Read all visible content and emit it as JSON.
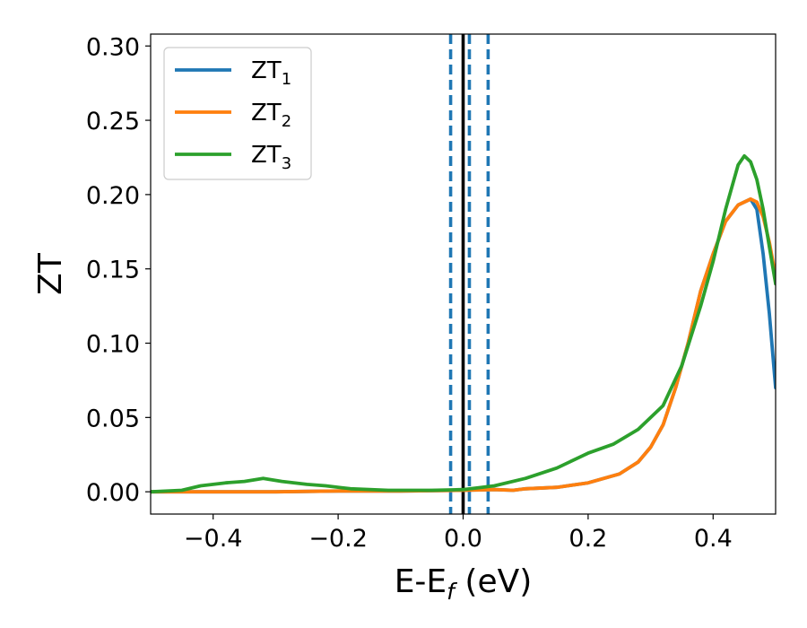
{
  "chart_data": {
    "type": "line",
    "xlabel_main": "E-E",
    "xlabel_sub": "f",
    "xlabel_unit": " (eV)",
    "ylabel": "ZT",
    "xlim": [
      -0.5,
      0.5
    ],
    "ylim": [
      -0.015,
      0.308
    ],
    "xticks": [
      -0.4,
      -0.2,
      0.0,
      0.2,
      0.4
    ],
    "xtick_labels": [
      "−0.4",
      "−0.2",
      "0.0",
      "0.2",
      "0.4"
    ],
    "yticks": [
      0.0,
      0.05,
      0.1,
      0.15,
      0.2,
      0.25,
      0.3
    ],
    "ytick_labels": [
      "0.00",
      "0.05",
      "0.10",
      "0.15",
      "0.20",
      "0.25",
      "0.30"
    ],
    "grid": false,
    "legend_position": "top-left",
    "vlines": [
      {
        "x": 0.0,
        "style": "solid",
        "color": "#000000"
      },
      {
        "x": -0.02,
        "style": "dashed",
        "color": "#1f77b4"
      },
      {
        "x": 0.01,
        "style": "dashed",
        "color": "#1f77b4"
      },
      {
        "x": 0.04,
        "style": "dashed",
        "color": "#1f77b4"
      }
    ],
    "series": [
      {
        "name_main": "ZT",
        "name_sub": "1",
        "color": "#1f77b4",
        "points": [
          [
            -0.5,
            0.0
          ],
          [
            -0.4,
            0.0
          ],
          [
            -0.3,
            0.0
          ],
          [
            -0.2,
            0.0005
          ],
          [
            -0.1,
            0.0005
          ],
          [
            0.0,
            0.001
          ],
          [
            0.05,
            0.0015
          ],
          [
            0.08,
            0.001
          ],
          [
            0.1,
            0.002
          ],
          [
            0.15,
            0.003
          ],
          [
            0.2,
            0.006
          ],
          [
            0.25,
            0.012
          ],
          [
            0.28,
            0.02
          ],
          [
            0.3,
            0.03
          ],
          [
            0.32,
            0.045
          ],
          [
            0.34,
            0.07
          ],
          [
            0.36,
            0.1
          ],
          [
            0.38,
            0.135
          ],
          [
            0.4,
            0.16
          ],
          [
            0.42,
            0.182
          ],
          [
            0.44,
            0.193
          ],
          [
            0.46,
            0.197
          ],
          [
            0.47,
            0.19
          ],
          [
            0.48,
            0.16
          ],
          [
            0.49,
            0.12
          ],
          [
            0.5,
            0.07
          ]
        ]
      },
      {
        "name_main": "ZT",
        "name_sub": "2",
        "color": "#ff7f0e",
        "points": [
          [
            -0.5,
            0.0
          ],
          [
            -0.4,
            0.0
          ],
          [
            -0.3,
            0.0
          ],
          [
            -0.2,
            0.0005
          ],
          [
            -0.1,
            0.0005
          ],
          [
            0.0,
            0.001
          ],
          [
            0.05,
            0.0015
          ],
          [
            0.08,
            0.001
          ],
          [
            0.1,
            0.002
          ],
          [
            0.15,
            0.003
          ],
          [
            0.2,
            0.006
          ],
          [
            0.25,
            0.012
          ],
          [
            0.28,
            0.02
          ],
          [
            0.3,
            0.03
          ],
          [
            0.32,
            0.045
          ],
          [
            0.34,
            0.07
          ],
          [
            0.36,
            0.1
          ],
          [
            0.38,
            0.135
          ],
          [
            0.4,
            0.16
          ],
          [
            0.42,
            0.182
          ],
          [
            0.44,
            0.193
          ],
          [
            0.46,
            0.197
          ],
          [
            0.47,
            0.195
          ],
          [
            0.48,
            0.185
          ],
          [
            0.49,
            0.168
          ],
          [
            0.5,
            0.145
          ]
        ]
      },
      {
        "name_main": "ZT",
        "name_sub": "3",
        "color": "#2ca02c",
        "points": [
          [
            -0.5,
            0.0
          ],
          [
            -0.45,
            0.001
          ],
          [
            -0.42,
            0.004
          ],
          [
            -0.38,
            0.006
          ],
          [
            -0.35,
            0.007
          ],
          [
            -0.32,
            0.009
          ],
          [
            -0.29,
            0.007
          ],
          [
            -0.25,
            0.005
          ],
          [
            -0.22,
            0.004
          ],
          [
            -0.18,
            0.002
          ],
          [
            -0.12,
            0.001
          ],
          [
            -0.05,
            0.001
          ],
          [
            0.0,
            0.0015
          ],
          [
            0.05,
            0.004
          ],
          [
            0.1,
            0.009
          ],
          [
            0.15,
            0.016
          ],
          [
            0.2,
            0.026
          ],
          [
            0.24,
            0.032
          ],
          [
            0.28,
            0.042
          ],
          [
            0.32,
            0.058
          ],
          [
            0.35,
            0.085
          ],
          [
            0.38,
            0.125
          ],
          [
            0.4,
            0.155
          ],
          [
            0.42,
            0.19
          ],
          [
            0.44,
            0.22
          ],
          [
            0.45,
            0.226
          ],
          [
            0.46,
            0.222
          ],
          [
            0.47,
            0.21
          ],
          [
            0.48,
            0.19
          ],
          [
            0.49,
            0.165
          ],
          [
            0.5,
            0.14
          ]
        ]
      }
    ]
  }
}
